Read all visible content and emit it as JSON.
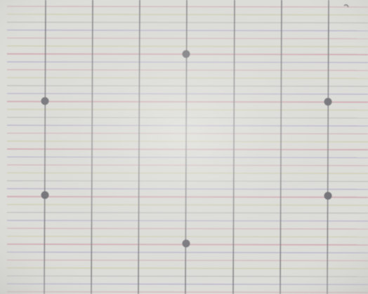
{
  "image": {
    "subject": "grid-paper",
    "colors": {
      "paper": "#dcdcd8",
      "paper_light": "#e6e6e2",
      "vertical_line": "#77777d",
      "horizontal_pink": "#cfa2ad",
      "horizontal_yellow": "#c9c79b",
      "horizontal_purple": "#a79ec7",
      "horizontal_grey": "#b0b0b4",
      "dot": "#6c6c72"
    }
  }
}
